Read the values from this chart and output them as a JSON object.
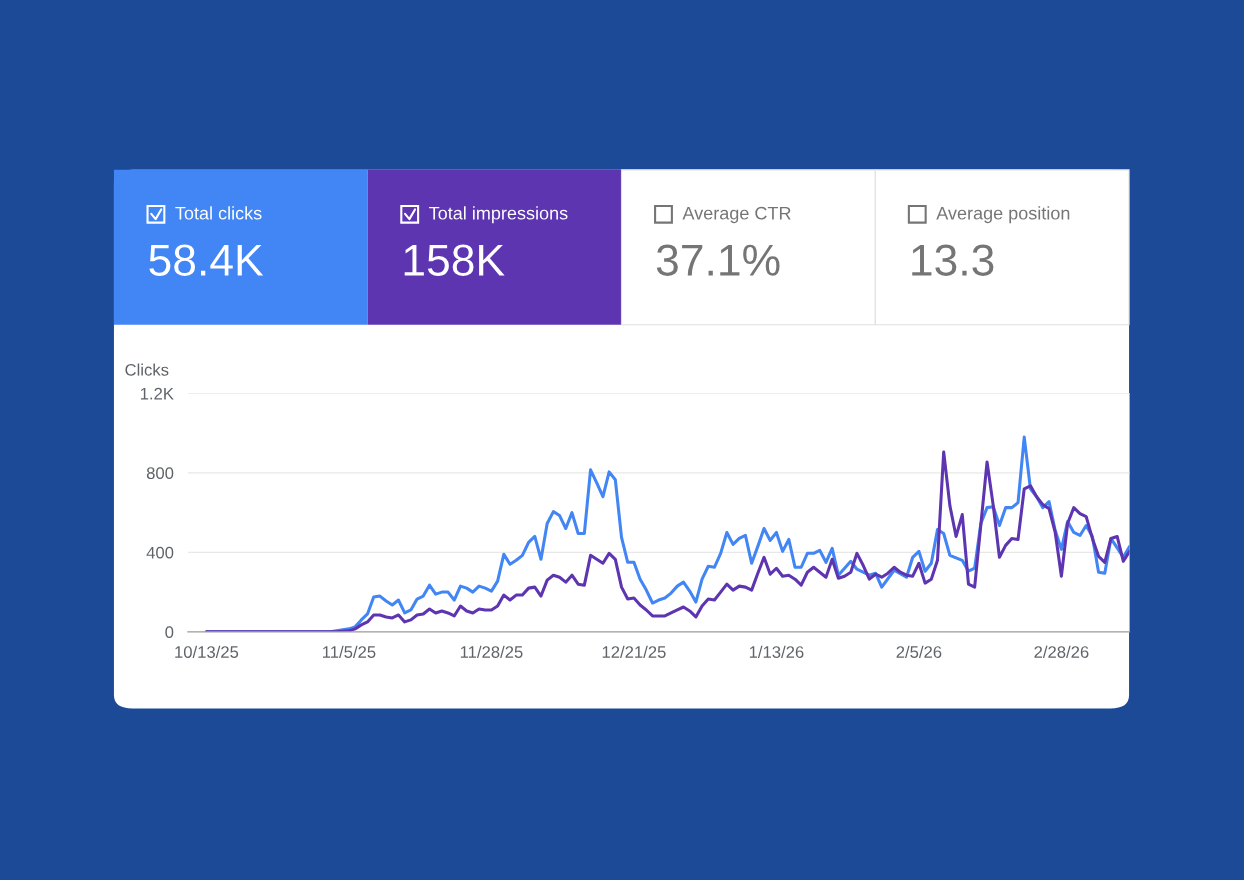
{
  "chart_data": {
    "type": "line",
    "ylabel": "Clicks",
    "annotations": [
      "Total clicks",
      "58.4K",
      "Total impressions",
      "158K",
      "Average CTR",
      "37.1%",
      "Average position",
      "13.3"
    ],
    "xlim": [
      "2025-10-10",
      "2026-03-11"
    ],
    "xticks": [
      {
        "value": "2025-10-13",
        "label": "10/13/25"
      },
      {
        "value": "2025-11-05",
        "label": "11/5/25"
      },
      {
        "value": "2025-11-28",
        "label": "11/28/25"
      },
      {
        "value": "2025-12-21",
        "label": "12/21/25"
      },
      {
        "value": "2026-01-13",
        "label": "1/13/26"
      },
      {
        "value": "2026-02-05",
        "label": "2/5/26"
      },
      {
        "value": "2026-02-28",
        "label": "2/28/26"
      }
    ],
    "ylim": [
      0,
      1200
    ],
    "yticks": [
      0,
      400,
      800,
      {
        "value": 1200,
        "label": "1.2K"
      }
    ],
    "grid": "y",
    "marker": "none",
    "line_style": "solid",
    "series": [
      {
        "color": "#4285f4",
        "x": [
          "2025-10-13",
          "2025-11-02",
          "2025-11-03",
          "2025-11-05",
          "2025-11-06",
          "2025-11-07",
          "2025-11-08",
          "2025-11-09",
          "2025-11-10",
          "2025-11-11",
          "2025-11-12",
          "2025-11-13",
          "2025-11-14",
          "2025-11-15",
          "2025-11-16",
          "2025-11-17",
          "2025-11-18",
          "2025-11-19",
          "2025-11-20",
          "2025-11-21",
          "2025-11-22",
          "2025-11-23",
          "2025-11-24",
          "2025-11-25",
          "2025-11-26",
          "2025-11-27",
          "2025-11-28",
          "2025-11-29",
          "2025-11-30",
          "2025-12-01",
          "2025-12-02",
          "2025-12-03",
          "2025-12-04",
          "2025-12-05",
          "2025-12-06",
          "2025-12-07",
          "2025-12-08",
          "2025-12-09",
          "2025-12-10",
          "2025-12-11",
          "2025-12-12",
          "2025-12-13",
          "2025-12-14",
          "2025-12-15",
          "2025-12-16",
          "2025-12-17",
          "2025-12-18",
          "2025-12-19",
          "2025-12-20",
          "2025-12-21",
          "2025-12-22",
          "2025-12-23",
          "2025-12-24",
          "2025-12-25",
          "2025-12-26",
          "2025-12-27",
          "2025-12-28",
          "2025-12-29",
          "2025-12-30",
          "2025-12-31",
          "2026-01-01",
          "2026-01-02",
          "2026-01-03",
          "2026-01-04",
          "2026-01-05",
          "2026-01-06",
          "2026-01-07",
          "2026-01-08",
          "2026-01-09",
          "2026-01-10",
          "2026-01-11",
          "2026-01-12",
          "2026-01-13",
          "2026-01-14",
          "2026-01-15",
          "2026-01-16",
          "2026-01-17",
          "2026-01-18",
          "2026-01-19",
          "2026-01-20",
          "2026-01-21",
          "2026-01-22",
          "2026-01-23",
          "2026-01-25",
          "2026-01-26",
          "2026-01-28",
          "2026-01-29",
          "2026-01-30",
          "2026-02-01",
          "2026-02-03",
          "2026-02-04",
          "2026-02-05",
          "2026-02-06",
          "2026-02-07",
          "2026-02-08",
          "2026-02-09",
          "2026-02-10",
          "2026-02-12",
          "2026-02-13",
          "2026-02-14",
          "2026-02-15",
          "2026-02-16",
          "2026-02-17",
          "2026-02-18",
          "2026-02-19",
          "2026-02-20",
          "2026-02-21",
          "2026-02-22",
          "2026-02-23",
          "2026-02-24",
          "2026-02-25",
          "2026-02-26",
          "2026-02-27",
          "2026-02-28",
          "2026-03-01",
          "2026-03-02",
          "2026-03-03",
          "2026-03-04",
          "2026-03-05",
          "2026-03-06",
          "2026-03-07",
          "2026-03-08",
          "2026-03-10",
          "2026-03-11"
        ],
        "values": [
          0,
          0,
          5,
          15,
          25,
          60,
          90,
          175,
          180,
          155,
          135,
          160,
          95,
          110,
          165,
          180,
          235,
          190,
          200,
          200,
          160,
          230,
          220,
          200,
          230,
          220,
          205,
          255,
          390,
          340,
          360,
          385,
          450,
          480,
          365,
          545,
          605,
          585,
          520,
          600,
          495,
          495,
          815,
          750,
          680,
          805,
          765,
          475,
          350,
          350,
          265,
          210,
          145,
          160,
          170,
          195,
          230,
          250,
          205,
          150,
          265,
          330,
          325,
          395,
          500,
          440,
          470,
          485,
          345,
          430,
          520,
          460,
          500,
          405,
          465,
          325,
          325,
          395,
          395,
          410,
          350,
          420,
          285,
          355,
          315,
          285,
          295,
          225,
          310,
          275,
          375,
          405,
          305,
          345,
          515,
          495,
          385,
          360,
          305,
          320,
          545,
          625,
          630,
          535,
          625,
          625,
          650,
          980,
          720,
          680,
          625,
          655,
          510,
          415,
          555,
          500,
          485,
          535,
          480,
          300,
          295,
          470,
          375,
          430
        ]
      },
      {
        "color": "#5e35b1",
        "x": [
          "2025-10-13",
          "2025-11-03",
          "2025-11-05",
          "2025-11-06",
          "2025-11-07",
          "2025-11-08",
          "2025-11-09",
          "2025-11-10",
          "2025-11-11",
          "2025-11-12",
          "2025-11-13",
          "2025-11-14",
          "2025-11-15",
          "2025-11-16",
          "2025-11-17",
          "2025-11-18",
          "2025-11-19",
          "2025-11-20",
          "2025-11-21",
          "2025-11-22",
          "2025-11-23",
          "2025-11-24",
          "2025-11-25",
          "2025-11-26",
          "2025-11-27",
          "2025-11-28",
          "2025-11-29",
          "2025-11-30",
          "2025-12-01",
          "2025-12-02",
          "2025-12-03",
          "2025-12-04",
          "2025-12-05",
          "2025-12-06",
          "2025-12-07",
          "2025-12-08",
          "2025-12-09",
          "2025-12-10",
          "2025-12-11",
          "2025-12-12",
          "2025-12-13",
          "2025-12-14",
          "2025-12-15",
          "2025-12-16",
          "2025-12-17",
          "2025-12-18",
          "2025-12-19",
          "2025-12-20",
          "2025-12-21",
          "2025-12-22",
          "2025-12-23",
          "2025-12-24",
          "2025-12-26",
          "2025-12-28",
          "2025-12-29",
          "2025-12-30",
          "2025-12-31",
          "2026-01-01",
          "2026-01-02",
          "2026-01-03",
          "2026-01-04",
          "2026-01-05",
          "2026-01-06",
          "2026-01-07",
          "2026-01-08",
          "2026-01-09",
          "2026-01-10",
          "2026-01-11",
          "2026-01-12",
          "2026-01-13",
          "2026-01-14",
          "2026-01-15",
          "2026-01-16",
          "2026-01-17",
          "2026-01-18",
          "2026-01-19",
          "2026-01-20",
          "2026-01-21",
          "2026-01-22",
          "2026-01-23",
          "2026-01-24",
          "2026-01-25",
          "2026-01-26",
          "2026-01-27",
          "2026-01-28",
          "2026-01-29",
          "2026-01-30",
          "2026-01-31",
          "2026-02-01",
          "2026-02-02",
          "2026-02-03",
          "2026-02-04",
          "2026-02-05",
          "2026-02-06",
          "2026-02-07",
          "2026-02-08",
          "2026-02-09",
          "2026-02-10",
          "2026-02-11",
          "2026-02-12",
          "2026-02-13",
          "2026-02-14",
          "2026-02-16",
          "2026-02-17",
          "2026-02-18",
          "2026-02-19",
          "2026-02-20",
          "2026-02-21",
          "2026-02-22",
          "2026-02-23",
          "2026-02-24",
          "2026-02-25",
          "2026-02-26",
          "2026-02-27",
          "2026-02-28",
          "2026-03-01",
          "2026-03-02",
          "2026-03-03",
          "2026-03-04",
          "2026-03-05",
          "2026-03-06",
          "2026-03-07",
          "2026-03-08",
          "2026-03-09",
          "2026-03-10",
          "2026-03-11"
        ],
        "values": [
          0,
          0,
          5,
          15,
          35,
          50,
          85,
          85,
          75,
          70,
          85,
          50,
          60,
          85,
          90,
          115,
          95,
          105,
          95,
          80,
          130,
          105,
          95,
          115,
          110,
          110,
          130,
          185,
          160,
          185,
          185,
          220,
          225,
          180,
          260,
          285,
          275,
          250,
          285,
          240,
          235,
          385,
          365,
          345,
          395,
          365,
          225,
          165,
          170,
          135,
          110,
          80,
          80,
          110,
          125,
          105,
          75,
          130,
          165,
          160,
          200,
          240,
          210,
          230,
          225,
          210,
          295,
          375,
          290,
          320,
          280,
          285,
          265,
          235,
          300,
          325,
          300,
          275,
          365,
          270,
          280,
          300,
          395,
          335,
          265,
          290,
          275,
          295,
          325,
          300,
          285,
          280,
          345,
          245,
          265,
          360,
          905,
          635,
          480,
          590,
          240,
          225,
          855,
          635,
          375,
          435,
          470,
          465,
          720,
          735,
          680,
          640,
          620,
          500,
          280,
          545,
          625,
          595,
          580,
          470,
          380,
          350,
          470,
          480,
          355,
          405
        ]
      }
    ]
  }
}
